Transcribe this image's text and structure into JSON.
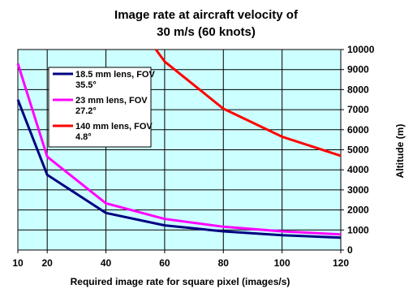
{
  "chart_data": {
    "type": "line",
    "title_line1": "Image rate at aircraft velocity of",
    "title_line2": "30 m/s (60 knots)",
    "xlabel": "Required image rate for square pixel (images/s)",
    "ylabel": "Altitude (m)",
    "x_ticks": [
      "10",
      "20",
      "40",
      "60",
      "80",
      "100",
      "120"
    ],
    "y_ticks": [
      "0",
      "1000",
      "2000",
      "3000",
      "4000",
      "5000",
      "6000",
      "7000",
      "8000",
      "9000",
      "10000"
    ],
    "xlim": [
      10,
      120
    ],
    "ylim": [
      0,
      10000
    ],
    "grid": true,
    "legend_position": "top-left",
    "colors": {
      "plot_background": "#ccffff",
      "grid": "#000000"
    },
    "categories": [
      10,
      20,
      40,
      60,
      80,
      100,
      120
    ],
    "series": [
      {
        "name_line1": "18.5 mm lens, FOV",
        "name_line2": "35.5°",
        "color": "#000080",
        "x": [
          10,
          20,
          40,
          60,
          80,
          100,
          120
        ],
        "values": [
          7500,
          3750,
          1850,
          1230,
          930,
          740,
          620
        ]
      },
      {
        "name_line1": "23 mm lens, FOV",
        "name_line2": "27.2°",
        "color": "#ff00ff",
        "x": [
          10,
          20,
          40,
          60,
          80,
          100,
          120
        ],
        "values": [
          9300,
          4650,
          2330,
          1550,
          1160,
          930,
          780
        ]
      },
      {
        "name_line1": "140 mm lens, FOV",
        "name_line2": "4.8°",
        "color": "#ff0000",
        "x": [
          57,
          60,
          80,
          100,
          120
        ],
        "values": [
          10000,
          9400,
          7050,
          5650,
          4700
        ]
      }
    ]
  }
}
